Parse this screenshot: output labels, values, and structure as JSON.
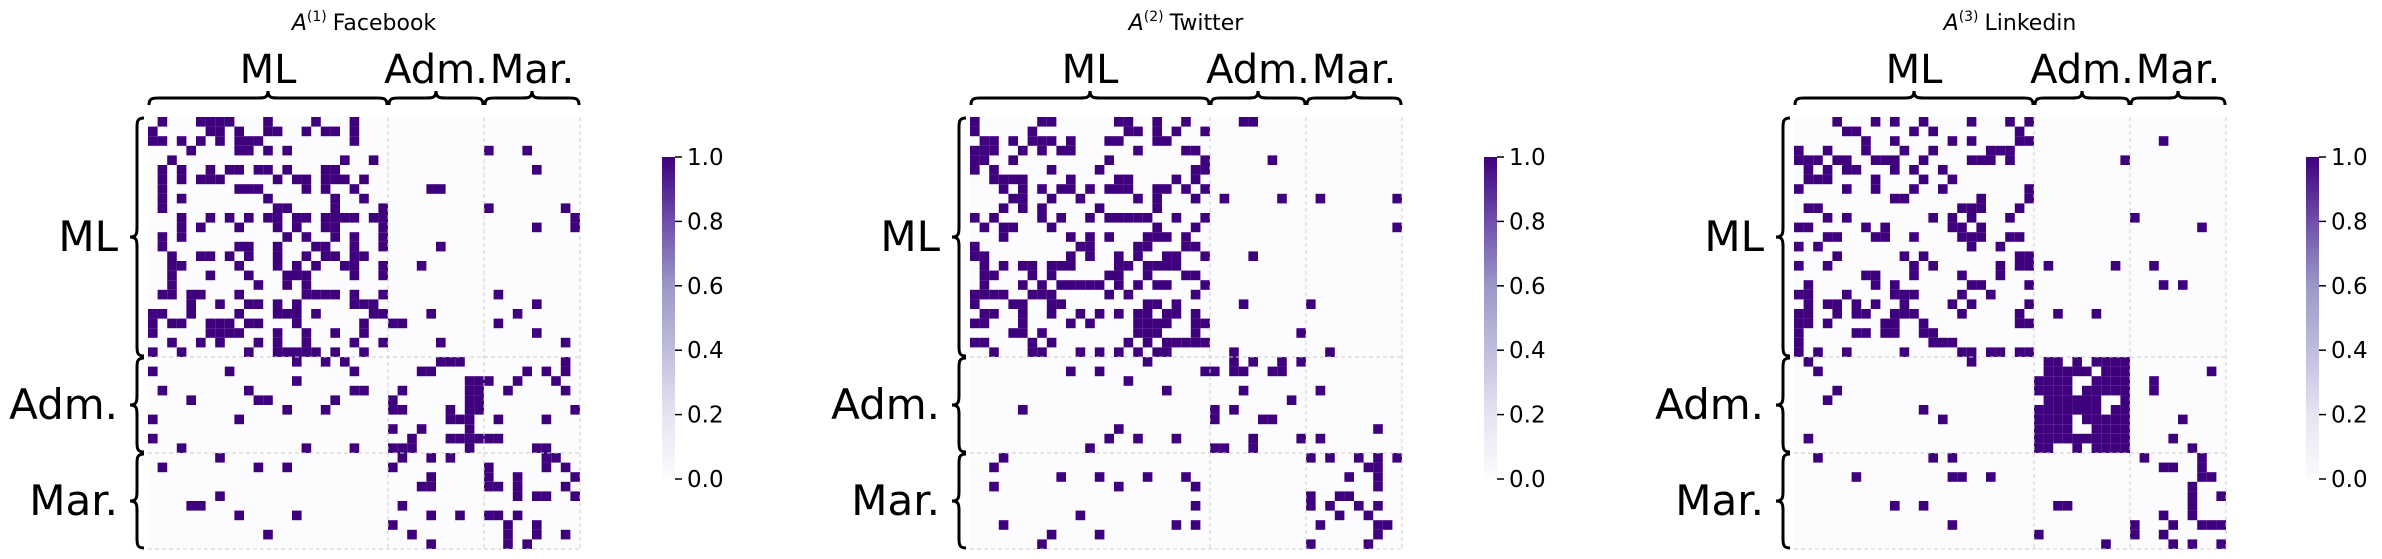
{
  "chart_data": [
    {
      "type": "heatmap",
      "title": "A^(1) Facebook",
      "title_base": "A",
      "title_sup": "(1)",
      "title_name": "Facebook",
      "group_labels": [
        "ML",
        "Adm.",
        "Mar."
      ],
      "block_sizes": [
        25,
        10,
        10
      ],
      "value_range": [
        0,
        1
      ],
      "colormap": "Purples",
      "cell_density": {
        "ML-ML": 0.32,
        "ML-Adm.": 0.05,
        "ML-Mar.": 0.05,
        "Adm.-ML": 0.05,
        "Adm.-Adm.": 0.3,
        "Adm.-Mar.": 0.15,
        "Mar.-ML": 0.05,
        "Mar.-Adm.": 0.12,
        "Mar.-Mar.": 0.3
      }
    },
    {
      "type": "heatmap",
      "title": "A^(2) Twitter",
      "title_base": "A",
      "title_sup": "(2)",
      "title_name": "Twitter",
      "group_labels": [
        "ML",
        "Adm.",
        "Mar."
      ],
      "block_sizes": [
        25,
        10,
        10
      ],
      "value_range": [
        0,
        1
      ],
      "colormap": "Purples",
      "cell_density": {
        "ML-ML": 0.35,
        "ML-Adm.": 0.05,
        "ML-Mar.": 0.04,
        "Adm.-ML": 0.05,
        "Adm.-Adm.": 0.28,
        "Adm.-Mar.": 0.03,
        "Mar.-ML": 0.04,
        "Mar.-Adm.": 0.03,
        "Mar.-Mar.": 0.28
      }
    },
    {
      "type": "heatmap",
      "title": "A^(3) Linkedin",
      "title_base": "A",
      "title_sup": "(3)",
      "title_name": "Linkedin",
      "group_labels": [
        "ML",
        "Adm.",
        "Mar."
      ],
      "block_sizes": [
        25,
        10,
        10
      ],
      "value_range": [
        0,
        1
      ],
      "colormap": "Purples",
      "cell_density": {
        "ML-ML": 0.3,
        "ML-Adm.": 0.02,
        "ML-Mar.": 0.04,
        "Adm.-ML": 0.04,
        "Adm.-Adm.": 0.8,
        "Adm.-Mar.": 0.04,
        "Mar.-ML": 0.04,
        "Mar.-Adm.": 0.04,
        "Mar.-Mar.": 0.3
      }
    }
  ],
  "colorbar": {
    "ticks": [
      "0.0",
      "0.2",
      "0.4",
      "0.6",
      "0.8",
      "1.0"
    ],
    "low_color": "#fcfbfd",
    "high_color": "#3f007d"
  },
  "colors": {
    "filled_cell": "#3f007d",
    "empty_cell": "#fcfbfd",
    "grid": "#cfcfcf"
  }
}
